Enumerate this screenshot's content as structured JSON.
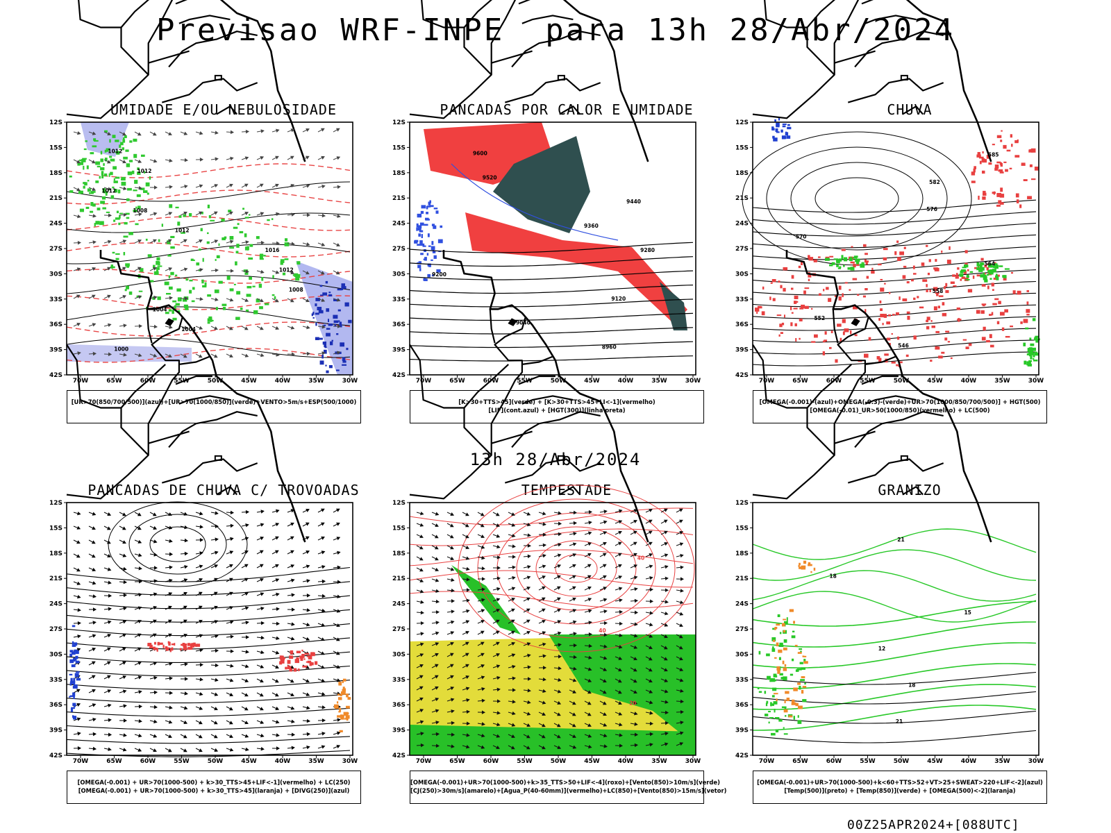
{
  "main_title": "Previsao WRF-INPE  para 13h 28/Abr/2024",
  "mid_title": "13h 28/Abr/2024",
  "footer": "00Z25APR2024+[088UTC]",
  "lat_ticks": [
    "12S",
    "15S",
    "18S",
    "21S",
    "24S",
    "27S",
    "30S",
    "33S",
    "36S",
    "39S",
    "42S"
  ],
  "lon_ticks": [
    "70W",
    "65W",
    "60W",
    "55W",
    "50W",
    "45W",
    "40W",
    "35W",
    "30W"
  ],
  "panels": [
    {
      "title": "UMIDADE E/OU NEBULOSIDADE",
      "legend": [
        "[UR>70(850/700/500)](azul)+[UR>70(1000/850)](verde)+VENTO>5m/s+ESP(500/1000)"
      ],
      "contour_labels": [
        "1012",
        "1012",
        "1012",
        "1008",
        "1012",
        "1016",
        "1012",
        "1008",
        "1004",
        "1004",
        "1000"
      ]
    },
    {
      "title": "PANCADAS POR CALOR E UMIDADE",
      "legend": [
        "[K>30+TTS>45](verde) + [K>30+TTS>45+LI<-1](vermelho)",
        "[LIF](cont.azul) + [HGT(300)](linha preta)"
      ],
      "contour_labels": [
        "9600",
        "9520",
        "9440",
        "9360",
        "9280",
        "9200",
        "9120",
        "9040",
        "8960"
      ]
    },
    {
      "title": "CHUVA",
      "legend": [
        "[OMEGA(-0.001)-(azul)+OMEGA(-0.3)-(verde)+UR>70(1000/850/700/500)] + HGT(500)",
        "[OMEGA(-0.01)_UR>50(1000/850)(vermelho) + LC(500)"
      ],
      "contour_labels": [
        "585",
        "582",
        "576",
        "570",
        "564",
        "558",
        "552",
        "546"
      ]
    },
    {
      "title": "PANCADAS DE CHUVA C/ TROVOADAS",
      "legend": [
        "[OMEGA(-0.001) + UR>70(1000-500) + k>30_TTS>45+LIF<-1](vermelho) + LC(250)",
        "[OMEGA(-0.001) + UR>70(1000-500) + k>30_TTS>45](laranja) + [DIVG(250)](azul)"
      ],
      "contour_labels": []
    },
    {
      "title": "TEMPESTADE",
      "legend": [
        "[OMEGA(-0.001)+UR>70(1000-500)+k>35_TTS>50+LIF<-4](roxo)+[Vento(850)>10m/s](verde)",
        "[CJ(250)>30m/s](amarelo)+[Agua_P(40-60mm)](vermelho)+LC(850)+[Vento(850)>15m/s](vetor)"
      ],
      "contour_labels": [
        "40",
        "40",
        "20"
      ]
    },
    {
      "title": "GRANIZO",
      "legend": [
        "[OMEGA(-0.001)+UR>70(1000-500)+k<60+TTS>52+VT>25+SWEAT>220+LIF<-2](azul)",
        "[Temp(500)](preto) + [Temp(850)](verde) + [OMEGA(500)<-2](laranja)"
      ],
      "contour_labels": [
        "21",
        "18",
        "15",
        "12",
        "18",
        "21"
      ]
    }
  ]
}
